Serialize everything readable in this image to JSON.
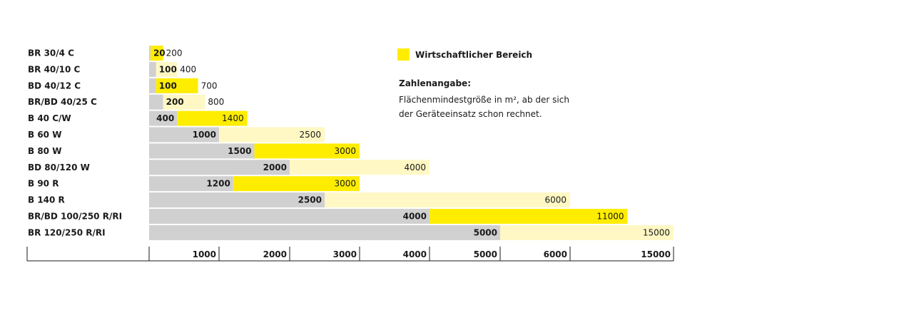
{
  "legend": {
    "label": "Wirtschaftlicher Bereich",
    "color": "#ffed00"
  },
  "note": {
    "title": "Zahlenangabe:",
    "text": "Flächenmindestgröße in m², ab der sich der Geräteeinsatz schon rechnet."
  },
  "colors": {
    "gray": "#d0d0d0",
    "yellow": "#ffed00",
    "light_yellow": "#fff8c4"
  },
  "chart_data": {
    "type": "bar",
    "orientation": "horizontal",
    "x_ticks": [
      "1000",
      "2000",
      "3000",
      "4000",
      "5000",
      "6000",
      "15000"
    ],
    "rows": [
      {
        "name": "BR 30/4 C",
        "min": 20,
        "max": 200,
        "max_highlight": true,
        "segments": [
          0.0,
          0.12,
          0.12,
          0.18
        ],
        "min_label": "20",
        "max_label": "200"
      },
      {
        "name": "BR 40/10 C",
        "min": 100,
        "max": 400,
        "max_highlight": false,
        "segments": [
          0.09,
          0.09,
          0.09,
          0.67
        ],
        "min_label": "100",
        "max_label": "400"
      },
      {
        "name": "BD 40/12 C",
        "min": 100,
        "max": 700,
        "max_highlight": true,
        "segments": [
          0.09,
          0.09,
          0.09,
          0.69
        ],
        "min_label": "100",
        "max_label": "700"
      },
      {
        "name": "BR/BD 40/25 C",
        "min": 200,
        "max": 800,
        "max_highlight": false,
        "segments": [
          0.2,
          0.2,
          0.2,
          0.8
        ],
        "min_label": "200",
        "max_label": "800"
      },
      {
        "name": "B 40 C/W",
        "min": 400,
        "max": 1400,
        "max_highlight": true,
        "segments": [
          0.39,
          0.39,
          0.39,
          1.75
        ],
        "min_label": "400",
        "max_label": "1400"
      },
      {
        "name": "B 60 W",
        "min": 1000,
        "max": 2500,
        "max_highlight": false,
        "segments": [
          1.0,
          1.0,
          1.0,
          2.5
        ],
        "min_label": "1000",
        "max_label": "2500"
      },
      {
        "name": "B 80 W",
        "min": 1500,
        "max": 3000,
        "max_highlight": true,
        "segments": [
          1.5,
          1.5,
          1.5,
          3.0
        ],
        "min_label": "1500",
        "max_label": "3000"
      },
      {
        "name": "BD 80/120 W",
        "min": 2000,
        "max": 4000,
        "max_highlight": false,
        "segments": [
          2.0,
          2.0,
          2.0,
          4.0
        ],
        "min_label": "2000",
        "max_label": "4000"
      },
      {
        "name": "B 90 R",
        "min": 1200,
        "max": 3000,
        "max_highlight": true,
        "segments": [
          1.2,
          1.2,
          1.2,
          3.0
        ],
        "min_label": "1200",
        "max_label": "3000"
      },
      {
        "name": "B 140 R",
        "min": 2500,
        "max": 6000,
        "max_highlight": false,
        "segments": [
          2.5,
          2.5,
          2.5,
          5.5
        ],
        "min_label": "2500",
        "max_label": "6000"
      },
      {
        "name": "BR/BD 100/250 R/RI",
        "min": 4000,
        "max": 11000,
        "max_highlight": true,
        "segments": [
          4.0,
          4.0,
          4.0,
          6.7
        ],
        "min_label": "4000",
        "max_label": "11000"
      },
      {
        "name": "BR 120/250 R/RI",
        "min": 5000,
        "max": 15000,
        "max_highlight": false,
        "segments": [
          5.0,
          5.0,
          5.0,
          7.5
        ],
        "min_label": "5000",
        "max_label": "15000"
      }
    ]
  }
}
